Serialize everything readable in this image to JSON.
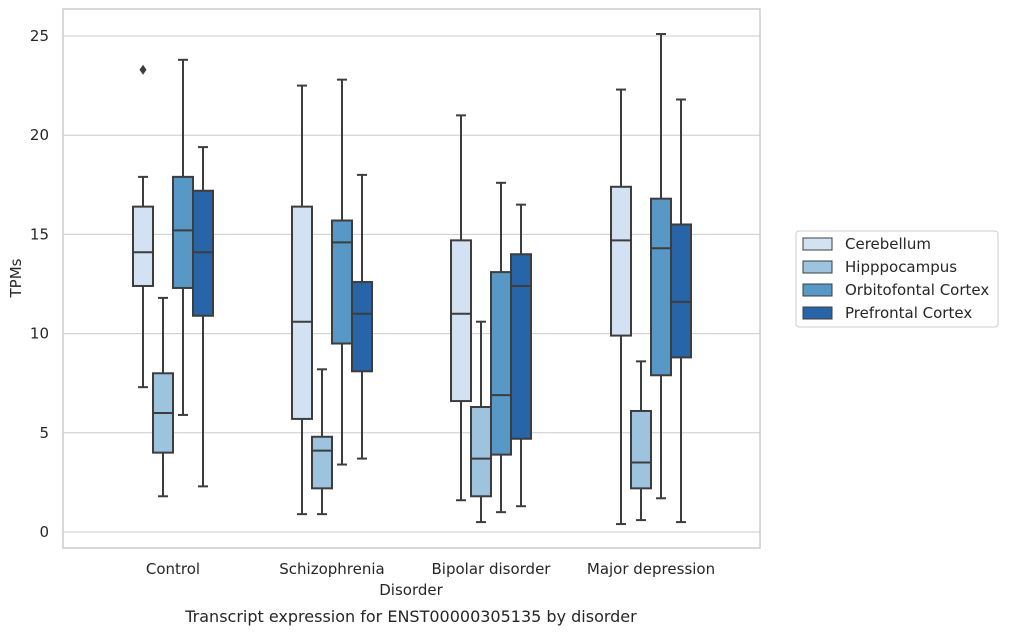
{
  "chart_data": {
    "type": "box",
    "title": "",
    "caption": "Transcript expression for ENST00000305135 by disorder",
    "xlabel": "Disorder",
    "ylabel": "TPMs",
    "ylim": [
      -0.7,
      26.3
    ],
    "yticks": [
      0,
      5,
      10,
      15,
      20,
      25
    ],
    "grid": true,
    "legend_placement": "right",
    "categories": [
      "Control",
      "Schizophrenia",
      "Bipolar disorder",
      "Major depression"
    ],
    "series": [
      {
        "name": "Cerebellum",
        "color": "#d2e2f2",
        "boxes": [
          {
            "whisker_low": 7.3,
            "q1": 12.4,
            "median": 14.1,
            "q3": 16.4,
            "whisker_high": 17.9,
            "outliers": [
              23.3
            ]
          },
          {
            "whisker_low": 0.9,
            "q1": 5.7,
            "median": 10.6,
            "q3": 16.4,
            "whisker_high": 22.5,
            "outliers": []
          },
          {
            "whisker_low": 1.6,
            "q1": 6.6,
            "median": 11.0,
            "q3": 14.7,
            "whisker_high": 21.0,
            "outliers": []
          },
          {
            "whisker_low": 0.4,
            "q1": 9.9,
            "median": 14.7,
            "q3": 17.4,
            "whisker_high": 22.3,
            "outliers": []
          }
        ]
      },
      {
        "name": "Hipppocampus",
        "color": "#9dc3de",
        "boxes": [
          {
            "whisker_low": 1.8,
            "q1": 4.0,
            "median": 6.0,
            "q3": 8.0,
            "whisker_high": 11.8,
            "outliers": []
          },
          {
            "whisker_low": 0.9,
            "q1": 2.2,
            "median": 4.1,
            "q3": 4.8,
            "whisker_high": 8.2,
            "outliers": []
          },
          {
            "whisker_low": 0.5,
            "q1": 1.8,
            "median": 3.7,
            "q3": 6.3,
            "whisker_high": 10.6,
            "outliers": []
          },
          {
            "whisker_low": 0.6,
            "q1": 2.2,
            "median": 3.5,
            "q3": 6.1,
            "whisker_high": 8.6,
            "outliers": []
          }
        ]
      },
      {
        "name": "Orbitofontal Cortex",
        "color": "#5898c7",
        "boxes": [
          {
            "whisker_low": 5.9,
            "q1": 12.3,
            "median": 15.2,
            "q3": 17.9,
            "whisker_high": 23.8,
            "outliers": []
          },
          {
            "whisker_low": 3.4,
            "q1": 9.5,
            "median": 14.6,
            "q3": 15.7,
            "whisker_high": 22.8,
            "outliers": []
          },
          {
            "whisker_low": 1.0,
            "q1": 3.9,
            "median": 6.9,
            "q3": 13.1,
            "whisker_high": 17.6,
            "outliers": []
          },
          {
            "whisker_low": 1.7,
            "q1": 7.9,
            "median": 14.3,
            "q3": 16.8,
            "whisker_high": 25.1,
            "outliers": []
          }
        ]
      },
      {
        "name": "Prefrontal Cortex",
        "color": "#2864a8",
        "boxes": [
          {
            "whisker_low": 2.3,
            "q1": 10.9,
            "median": 14.1,
            "q3": 17.2,
            "whisker_high": 19.4,
            "outliers": []
          },
          {
            "whisker_low": 3.7,
            "q1": 8.1,
            "median": 11.0,
            "q3": 12.6,
            "whisker_high": 18.0,
            "outliers": []
          },
          {
            "whisker_low": 1.3,
            "q1": 4.7,
            "median": 12.4,
            "q3": 14.0,
            "whisker_high": 16.5,
            "outliers": []
          },
          {
            "whisker_low": 0.5,
            "q1": 8.8,
            "median": 11.6,
            "q3": 15.5,
            "whisker_high": 21.8,
            "outliers": []
          }
        ]
      }
    ]
  }
}
